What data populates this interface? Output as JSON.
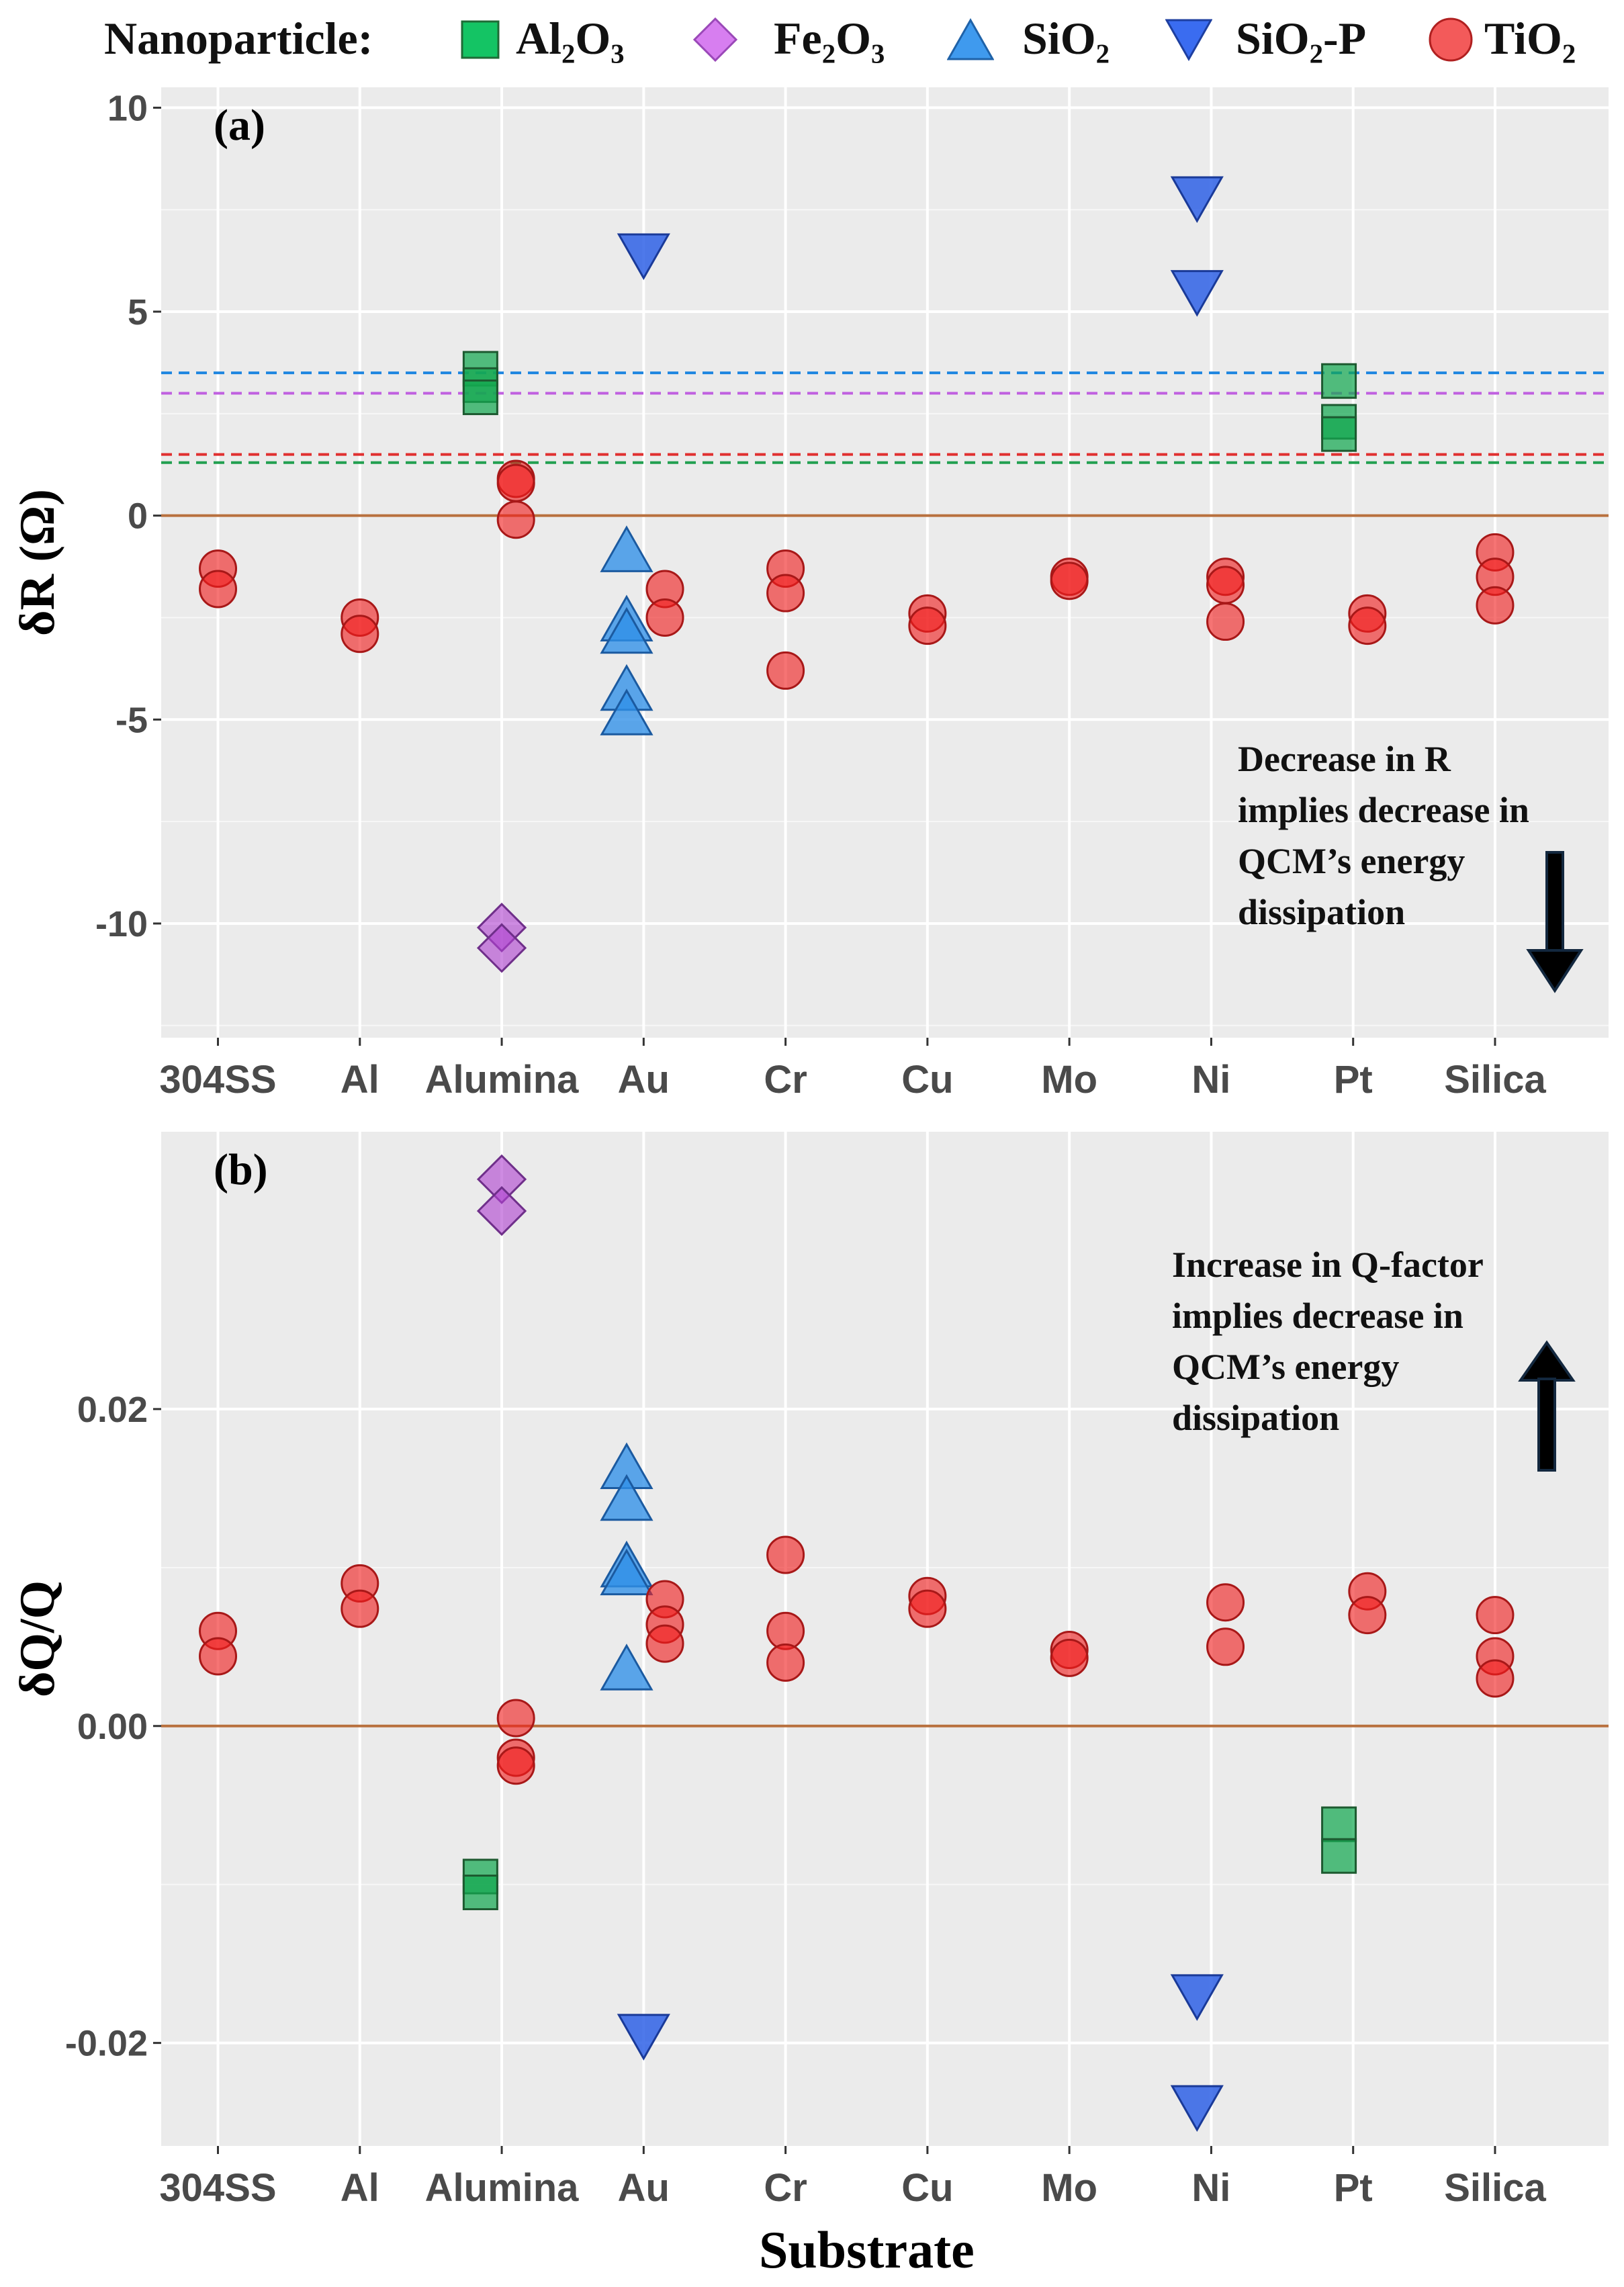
{
  "legend": {
    "title": "Nanoparticle:",
    "items": [
      {
        "id": "al2o3",
        "label": "Al₂O₃",
        "shape": "square",
        "color": "#2ea35a"
      },
      {
        "id": "fe2o3",
        "label": "Fe₂O₃",
        "shape": "diamond",
        "color": "#b34fd1"
      },
      {
        "id": "sio2",
        "label": "SiO₂",
        "shape": "triangle-up",
        "color": "#3f8fe8"
      },
      {
        "id": "sio2p",
        "label": "SiO₂-P",
        "shape": "triangle-down",
        "color": "#2f5fe0"
      },
      {
        "id": "tio2",
        "label": "TiO₂",
        "shape": "circle",
        "color": "#f02828"
      }
    ]
  },
  "x_axis_title": "Substrate",
  "annotations": {
    "top": [
      "Decrease in R",
      "implies decrease in",
      "QCM’s energy",
      "dissipation"
    ],
    "bottom": [
      "Increase in Q-factor",
      "implies decrease in",
      "QCM’s energy",
      "dissipation"
    ]
  },
  "chart_data": [
    {
      "type": "scatter",
      "panel": "(a)",
      "ylabel": "δR (Ω)",
      "xlabel": "",
      "categories": [
        "304SS",
        "Al",
        "Alumina",
        "Au",
        "Cr",
        "Cu",
        "Mo",
        "Ni",
        "Pt",
        "Silica"
      ],
      "ylim": [
        -12.8,
        10.5
      ],
      "yticks": [
        10,
        5,
        0,
        -5,
        -10
      ],
      "ytick_labels": [
        "10",
        "5",
        "0",
        "-5",
        "-10"
      ],
      "hlines": [
        {
          "y": 0,
          "color": "#b8703e",
          "style": "solid"
        },
        {
          "y": 3.5,
          "color": "#1e86e0",
          "style": "dashed"
        },
        {
          "y": 3.0,
          "color": "#c060e0",
          "style": "dashed"
        },
        {
          "y": 1.5,
          "color": "#e03030",
          "style": "dashed"
        },
        {
          "y": 1.3,
          "color": "#22a050",
          "style": "dashed"
        }
      ],
      "series": [
        {
          "name": "Al2O3",
          "points": [
            [
              "Alumina",
              3.6,
              -0.15
            ],
            [
              "Alumina",
              3.2,
              -0.15
            ],
            [
              "Alumina",
              2.9,
              -0.15
            ],
            [
              "Pt",
              3.3,
              -0.1
            ],
            [
              "Pt",
              2.3,
              -0.1
            ],
            [
              "Pt",
              2.0,
              -0.1
            ]
          ]
        },
        {
          "name": "Fe2O3",
          "points": [
            [
              "Alumina",
              -10.1,
              0
            ],
            [
              "Alumina",
              -10.6,
              0
            ]
          ]
        },
        {
          "name": "SiO2",
          "points": [
            [
              "Au",
              -0.9,
              -0.12
            ],
            [
              "Au",
              -2.6,
              -0.12
            ],
            [
              "Au",
              -2.9,
              -0.12
            ],
            [
              "Au",
              -4.3,
              -0.12
            ],
            [
              "Au",
              -4.9,
              -0.12
            ]
          ]
        },
        {
          "name": "SiO2-P",
          "points": [
            [
              "Au",
              6.4,
              0
            ],
            [
              "Ni",
              7.8,
              -0.1
            ],
            [
              "Ni",
              5.5,
              -0.1
            ]
          ]
        },
        {
          "name": "TiO2",
          "points": [
            [
              "304SS",
              -1.3,
              0
            ],
            [
              "304SS",
              -1.8,
              0
            ],
            [
              "Al",
              -2.5,
              0
            ],
            [
              "Al",
              -2.9,
              0
            ],
            [
              "Alumina",
              0.9,
              0.1
            ],
            [
              "Alumina",
              0.8,
              0.1
            ],
            [
              "Alumina",
              -0.1,
              0.1
            ],
            [
              "Au",
              -1.8,
              0.15
            ],
            [
              "Au",
              -2.5,
              0.15
            ],
            [
              "Cr",
              -1.3,
              0
            ],
            [
              "Cr",
              -1.9,
              0
            ],
            [
              "Cr",
              -3.8,
              0
            ],
            [
              "Cu",
              -2.4,
              0
            ],
            [
              "Cu",
              -2.7,
              0
            ],
            [
              "Mo",
              -1.5,
              0
            ],
            [
              "Mo",
              -1.6,
              0
            ],
            [
              "Ni",
              -1.5,
              0.1
            ],
            [
              "Ni",
              -1.7,
              0.1
            ],
            [
              "Ni",
              -2.6,
              0.1
            ],
            [
              "Pt",
              -2.4,
              0.1
            ],
            [
              "Pt",
              -2.7,
              0.1
            ],
            [
              "Silica",
              -0.9,
              0
            ],
            [
              "Silica",
              -1.5,
              0
            ],
            [
              "Silica",
              -2.2,
              0
            ]
          ]
        }
      ]
    },
    {
      "type": "scatter",
      "panel": "(b)",
      "ylabel": "δQ/Q",
      "xlabel": "Substrate",
      "categories": [
        "304SS",
        "Al",
        "Alumina",
        "Au",
        "Cr",
        "Cu",
        "Mo",
        "Ni",
        "Pt",
        "Silica"
      ],
      "ylim": [
        -0.0265,
        0.0375
      ],
      "yticks": [
        0.02,
        0.0,
        -0.02
      ],
      "ytick_labels": [
        "0.02",
        "0.00",
        "-0.02"
      ],
      "hlines": [
        {
          "y": 0,
          "color": "#b8703e",
          "style": "solid"
        }
      ],
      "series": [
        {
          "name": "Al2O3",
          "points": [
            [
              "Alumina",
              -0.0095,
              -0.15
            ],
            [
              "Alumina",
              -0.0105,
              -0.15
            ],
            [
              "Pt",
              -0.0062,
              -0.1
            ],
            [
              "Pt",
              -0.0082,
              -0.1
            ]
          ]
        },
        {
          "name": "Fe2O3",
          "points": [
            [
              "Alumina",
              0.0345,
              0
            ],
            [
              "Alumina",
              0.0325,
              0
            ]
          ]
        },
        {
          "name": "SiO2",
          "points": [
            [
              "Au",
              0.0162,
              -0.12
            ],
            [
              "Au",
              0.0142,
              -0.12
            ],
            [
              "Au",
              0.01,
              -0.12
            ],
            [
              "Au",
              0.0095,
              -0.12
            ],
            [
              "Au",
              0.0035,
              -0.12
            ]
          ]
        },
        {
          "name": "SiO2-P",
          "points": [
            [
              "Au",
              -0.0195,
              0
            ],
            [
              "Ni",
              -0.017,
              -0.1
            ],
            [
              "Ni",
              -0.024,
              -0.1
            ]
          ]
        },
        {
          "name": "TiO2",
          "points": [
            [
              "304SS",
              0.006,
              0
            ],
            [
              "304SS",
              0.0044,
              0
            ],
            [
              "Al",
              0.009,
              0
            ],
            [
              "Al",
              0.0074,
              0
            ],
            [
              "Alumina",
              0.0005,
              0.1
            ],
            [
              "Alumina",
              -0.002,
              0.1
            ],
            [
              "Alumina",
              -0.0025,
              0.1
            ],
            [
              "Au",
              0.008,
              0.15
            ],
            [
              "Au",
              0.0064,
              0.15
            ],
            [
              "Au",
              0.0052,
              0.15
            ],
            [
              "Cr",
              0.0108,
              0
            ],
            [
              "Cr",
              0.006,
              0
            ],
            [
              "Cr",
              0.004,
              0
            ],
            [
              "Cu",
              0.0082,
              0
            ],
            [
              "Cu",
              0.0074,
              0
            ],
            [
              "Mo",
              0.0048,
              0
            ],
            [
              "Mo",
              0.0043,
              0
            ],
            [
              "Ni",
              0.0078,
              0.1
            ],
            [
              "Ni",
              0.005,
              0.1
            ],
            [
              "Pt",
              0.0085,
              0.1
            ],
            [
              "Pt",
              0.007,
              0.1
            ],
            [
              "Silica",
              0.007,
              0
            ],
            [
              "Silica",
              0.0044,
              0
            ],
            [
              "Silica",
              0.003,
              0
            ]
          ]
        }
      ]
    }
  ]
}
